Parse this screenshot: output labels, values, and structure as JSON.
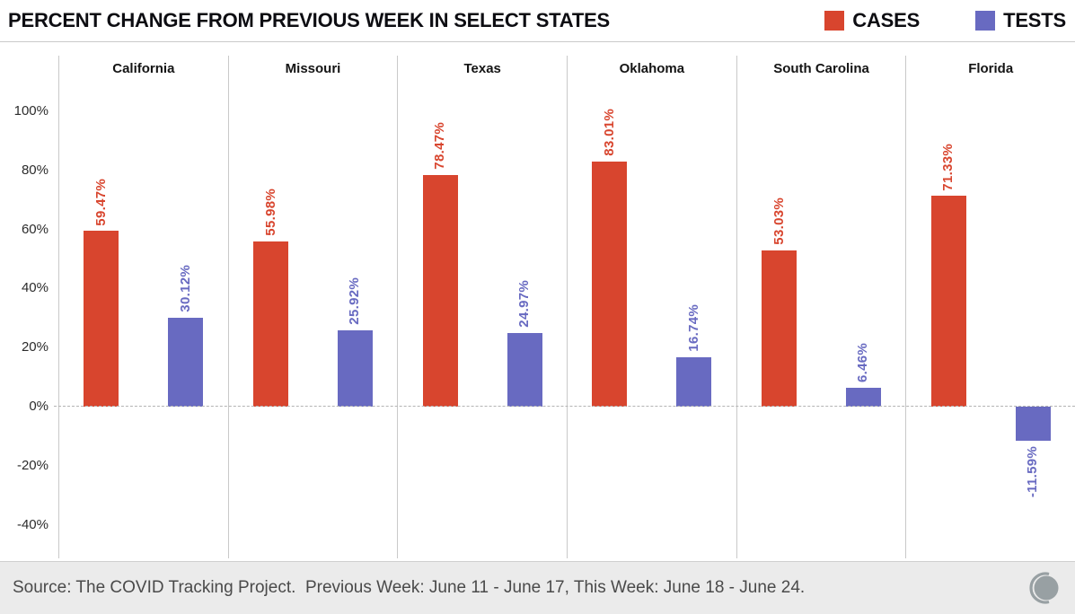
{
  "header": {
    "title": "PERCENT CHANGE FROM PREVIOUS WEEK IN SELECT STATES",
    "legend": [
      {
        "label": "CASES",
        "color": "#d8452e"
      },
      {
        "label": "TESTS",
        "color": "#686ac1"
      }
    ]
  },
  "chart_data": {
    "type": "bar",
    "title": "PERCENT CHANGE FROM PREVIOUS WEEK IN SELECT STATES",
    "categories": [
      "California",
      "Missouri",
      "Texas",
      "Oklahoma",
      "South Carolina",
      "Florida"
    ],
    "series": [
      {
        "name": "CASES",
        "color": "#d8452e",
        "values": [
          59.47,
          55.98,
          78.47,
          83.01,
          53.03,
          71.33
        ],
        "labels": [
          "59.47%",
          "55.98%",
          "78.47%",
          "83.01%",
          "53.03%",
          "71.33%"
        ]
      },
      {
        "name": "TESTS",
        "color": "#686ac1",
        "values": [
          30.12,
          25.92,
          24.97,
          16.74,
          6.46,
          -11.59
        ],
        "labels": [
          "30.12%",
          "25.92%",
          "24.97%",
          "16.74%",
          "6.46%",
          "-11.59%"
        ]
      }
    ],
    "xlabel": "",
    "ylabel": "",
    "ylim": [
      -47,
      112
    ],
    "yticks": [
      {
        "value": 100,
        "label": "100%"
      },
      {
        "value": 80,
        "label": "80%"
      },
      {
        "value": 60,
        "label": "60%"
      },
      {
        "value": 40,
        "label": "40%"
      },
      {
        "value": 20,
        "label": "20%"
      },
      {
        "value": 0,
        "label": "0%"
      },
      {
        "value": -20,
        "label": "-20%"
      },
      {
        "value": -40,
        "label": "-40%"
      }
    ],
    "grid": "dashed-zero-line-only",
    "legend_position": "top-right",
    "value_label_orientation": "rotated-90"
  },
  "footer": {
    "source_text": "Source: The COVID Tracking Project.  Previous Week: June 11 - June 17, This Week: June 18 - June 24.",
    "logo_icon": "covid-tracking-project-logo"
  }
}
